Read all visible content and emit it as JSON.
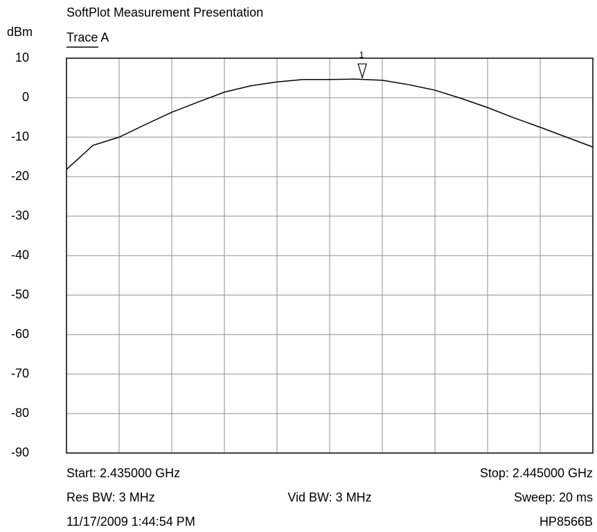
{
  "chart_data": {
    "type": "line",
    "title": "SoftPlot Measurement Presentation",
    "y_label": "dBm",
    "x": [
      2.435,
      2.4355,
      2.436,
      2.4365,
      2.437,
      2.4375,
      2.438,
      2.4385,
      2.439,
      2.4395,
      2.44,
      2.4405,
      2.441,
      2.4415,
      2.442,
      2.4425,
      2.443,
      2.4435,
      2.444,
      2.4445,
      2.445
    ],
    "series": [
      {
        "name": "Trace A",
        "color": "#000000",
        "values": [
          -18.2,
          -12.1,
          -10,
          -6.8,
          -3.7,
          -1.1,
          1.4,
          3.0,
          4.0,
          4.6,
          4.6,
          4.7,
          4.4,
          3.3,
          1.9,
          -0.2,
          -2.5,
          -5.1,
          -7.5,
          -10,
          -12.5
        ]
      }
    ],
    "markers": [
      {
        "label": "1",
        "x": 2.44062,
        "y": 4.7
      }
    ],
    "xlim": [
      2.435,
      2.445
    ],
    "xticks": [
      2.435,
      2.436,
      2.437,
      2.438,
      2.439,
      2.44,
      2.441,
      2.442,
      2.443,
      2.444,
      2.445
    ],
    "ylim": [
      -90,
      10
    ],
    "yticks": [
      10,
      0,
      -10,
      -20,
      -30,
      -40,
      -50,
      -60,
      -70,
      -80,
      -90
    ],
    "grid": true,
    "footer": {
      "start": "Start: 2.435000 GHz",
      "stop": "Stop: 2.445000 GHz",
      "res_bw": "Res BW: 3 MHz",
      "vid_bw": "Vid BW: 3 MHz",
      "sweep": "Sweep: 20 ms",
      "timestamp": "11/17/2009 1:44:54 PM",
      "instrument": "HP8566B"
    }
  }
}
